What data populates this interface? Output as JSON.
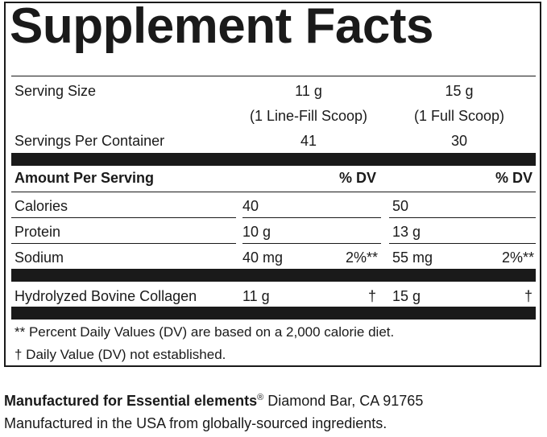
{
  "title": "Supplement Facts",
  "serving": {
    "label": "Serving Size",
    "col1_amount": "11 g",
    "col1_note": "(1 Line-Fill Scoop)",
    "col2_amount": "15 g",
    "col2_note": "(1 Full Scoop)"
  },
  "servings_per_container": {
    "label": "Servings Per Container",
    "col1": "41",
    "col2": "30"
  },
  "header": {
    "amount_per_serving": "Amount Per Serving",
    "dv1": "% DV",
    "dv2": "% DV"
  },
  "rows": [
    {
      "name": "Calories",
      "amount1": "40",
      "dv1": "",
      "amount2": "50",
      "dv2": ""
    },
    {
      "name": "Protein",
      "amount1": "10 g",
      "dv1": "",
      "amount2": "13 g",
      "dv2": ""
    },
    {
      "name": "Sodium",
      "amount1": "40 mg",
      "dv1": "2%**",
      "amount2": "55 mg",
      "dv2": "2%**"
    }
  ],
  "collagen": {
    "name": "Hydrolyzed Bovine Collagen",
    "amount1": "11 g",
    "dv1": "†",
    "amount2": "15 g",
    "dv2": "†"
  },
  "footnotes": [
    "** Percent Daily Values (DV) are based on a 2,000 calorie diet.",
    "† Daily Value (DV) not established."
  ],
  "manufacturer": {
    "prefix": "Manufactured for Essential elements",
    "reg_mark": "®",
    "location": " Diamond Bar, CA 91765",
    "origin": "Manufactured in the USA from globally-sourced ingredients."
  }
}
